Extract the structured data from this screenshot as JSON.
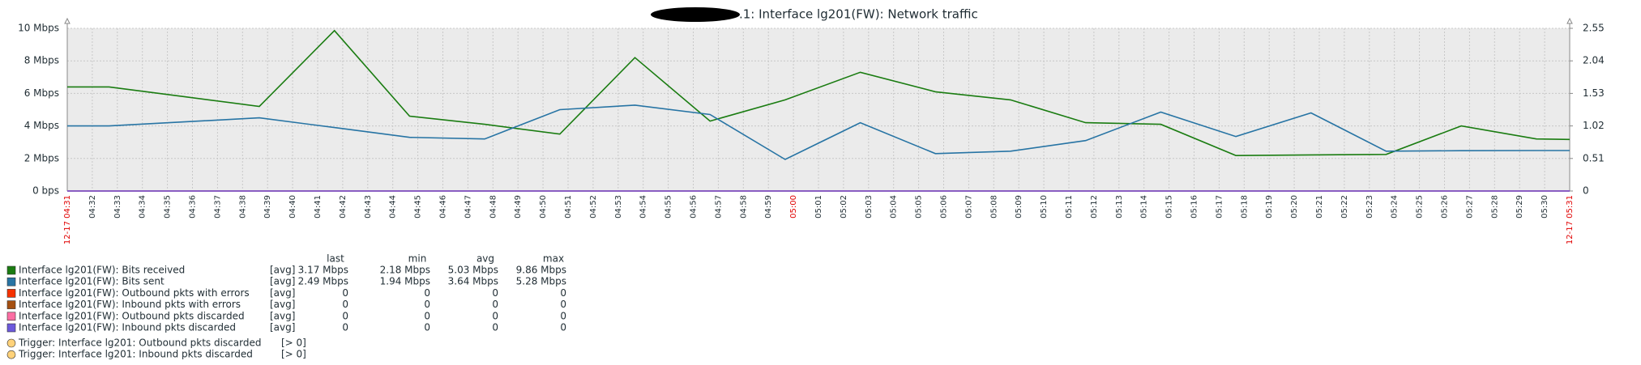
{
  "chart_data": {
    "type": "line",
    "title": ".1: Interface lg201(FW): Network traffic",
    "xlim": [
      0,
      60
    ],
    "xticks": [
      {
        "value": 0,
        "label": "12-17 04:31"
      },
      {
        "value": 1,
        "label": "04:32"
      },
      {
        "value": 2,
        "label": "04:33"
      },
      {
        "value": 3,
        "label": "04:34"
      },
      {
        "value": 4,
        "label": "04:35"
      },
      {
        "value": 5,
        "label": "04:36"
      },
      {
        "value": 6,
        "label": "04:37"
      },
      {
        "value": 7,
        "label": "04:38"
      },
      {
        "value": 8,
        "label": "04:39"
      },
      {
        "value": 9,
        "label": "04:40"
      },
      {
        "value": 10,
        "label": "04:41"
      },
      {
        "value": 11,
        "label": "04:42"
      },
      {
        "value": 12,
        "label": "04:43"
      },
      {
        "value": 13,
        "label": "04:44"
      },
      {
        "value": 14,
        "label": "04:45"
      },
      {
        "value": 15,
        "label": "04:46"
      },
      {
        "value": 16,
        "label": "04:47"
      },
      {
        "value": 17,
        "label": "04:48"
      },
      {
        "value": 18,
        "label": "04:49"
      },
      {
        "value": 19,
        "label": "04:50"
      },
      {
        "value": 20,
        "label": "04:51"
      },
      {
        "value": 21,
        "label": "04:52"
      },
      {
        "value": 22,
        "label": "04:53"
      },
      {
        "value": 23,
        "label": "04:54"
      },
      {
        "value": 24,
        "label": "04:55"
      },
      {
        "value": 25,
        "label": "04:56"
      },
      {
        "value": 26,
        "label": "04:57"
      },
      {
        "value": 27,
        "label": "04:58"
      },
      {
        "value": 28,
        "label": "04:59"
      },
      {
        "value": 29,
        "label": "05:00"
      },
      {
        "value": 30,
        "label": "05:01"
      },
      {
        "value": 31,
        "label": "05:02"
      },
      {
        "value": 32,
        "label": "05:03"
      },
      {
        "value": 33,
        "label": "05:04"
      },
      {
        "value": 34,
        "label": "05:05"
      },
      {
        "value": 35,
        "label": "05:06"
      },
      {
        "value": 36,
        "label": "05:07"
      },
      {
        "value": 37,
        "label": "05:08"
      },
      {
        "value": 38,
        "label": "05:09"
      },
      {
        "value": 39,
        "label": "05:10"
      },
      {
        "value": 40,
        "label": "05:11"
      },
      {
        "value": 41,
        "label": "05:12"
      },
      {
        "value": 42,
        "label": "05:13"
      },
      {
        "value": 43,
        "label": "05:14"
      },
      {
        "value": 44,
        "label": "05:15"
      },
      {
        "value": 45,
        "label": "05:16"
      },
      {
        "value": 46,
        "label": "05:17"
      },
      {
        "value": 47,
        "label": "05:18"
      },
      {
        "value": 48,
        "label": "05:19"
      },
      {
        "value": 49,
        "label": "05:20"
      },
      {
        "value": 50,
        "label": "05:21"
      },
      {
        "value": 51,
        "label": "05:22"
      },
      {
        "value": 52,
        "label": "05:23"
      },
      {
        "value": 53,
        "label": "05:24"
      },
      {
        "value": 54,
        "label": "05:25"
      },
      {
        "value": 55,
        "label": "05:26"
      },
      {
        "value": 56,
        "label": "05:27"
      },
      {
        "value": 57,
        "label": "05:28"
      },
      {
        "value": 58,
        "label": "05:29"
      },
      {
        "value": 59,
        "label": "05:30"
      },
      {
        "value": 60,
        "label": "12-17 05:31"
      }
    ],
    "highlight_xticks": [
      0,
      29,
      60
    ],
    "highlight_color": "#e00000",
    "ylim": [
      0,
      10
    ],
    "yticks": [
      {
        "value": 0,
        "label": "0 bps"
      },
      {
        "value": 2,
        "label": "2 Mbps"
      },
      {
        "value": 4,
        "label": "4 Mbps"
      },
      {
        "value": 6,
        "label": "6 Mbps"
      },
      {
        "value": 8,
        "label": "8 Mbps"
      },
      {
        "value": 10,
        "label": "10 Mbps"
      }
    ],
    "y2lim": [
      0,
      2.55
    ],
    "y2ticks": [
      0,
      0.51,
      1.02,
      1.53,
      2.04,
      2.55
    ],
    "grid": true,
    "x": [
      0,
      1.67,
      4.67,
      7.67,
      10.67,
      13.67,
      16.67,
      19.67,
      22.67,
      25.67,
      28.67,
      31.67,
      34.67,
      37.67,
      40.67,
      43.67,
      46.67,
      49.67,
      52.67,
      55.67,
      58.67,
      60
    ],
    "legend_columns": [
      "last",
      "min",
      "avg",
      "max"
    ],
    "series": [
      {
        "name": "Interface lg201(FW): Bits received",
        "color": "#1a7c11",
        "func": "[avg]",
        "stats": [
          "3.17 Mbps",
          "2.18 Mbps",
          "5.03 Mbps",
          "9.86 Mbps"
        ],
        "values": [
          6.4,
          6.4,
          5.8,
          5.2,
          9.86,
          4.6,
          4.1,
          3.5,
          8.2,
          4.3,
          5.6,
          7.3,
          6.1,
          5.6,
          4.2,
          4.1,
          2.18,
          2.22,
          2.25,
          4.0,
          3.2,
          3.17
        ]
      },
      {
        "name": "Interface lg201(FW): Bits sent",
        "color": "#2774a4",
        "func": "[avg]",
        "stats": [
          "2.49 Mbps",
          "1.94 Mbps",
          "3.64 Mbps",
          "5.28 Mbps"
        ],
        "values": [
          4.0,
          4.0,
          4.25,
          4.5,
          3.9,
          3.3,
          3.2,
          5.0,
          5.28,
          4.7,
          1.94,
          4.2,
          2.3,
          2.45,
          3.1,
          4.85,
          3.35,
          4.8,
          2.45,
          2.48,
          2.49,
          2.49
        ]
      },
      {
        "name": "Interface lg201(FW): Outbound pkts with errors",
        "color": "#f63100",
        "func": "[avg]",
        "stats": [
          "0",
          "0",
          "0",
          "0"
        ],
        "axis": "y2",
        "values": [
          0,
          0,
          0,
          0,
          0,
          0,
          0,
          0,
          0,
          0,
          0,
          0,
          0,
          0,
          0,
          0,
          0,
          0,
          0,
          0,
          0,
          0
        ]
      },
      {
        "name": "Interface lg201(FW): Inbound pkts with errors",
        "color": "#a54f10",
        "func": "[avg]",
        "stats": [
          "0",
          "0",
          "0",
          "0"
        ],
        "axis": "y2",
        "values": [
          0,
          0,
          0,
          0,
          0,
          0,
          0,
          0,
          0,
          0,
          0,
          0,
          0,
          0,
          0,
          0,
          0,
          0,
          0,
          0,
          0,
          0
        ]
      },
      {
        "name": "Interface lg201(FW): Outbound pkts discarded",
        "color": "#fc6ea3",
        "func": "[avg]",
        "stats": [
          "0",
          "0",
          "0",
          "0"
        ],
        "axis": "y2",
        "values": [
          0,
          0,
          0,
          0,
          0,
          0,
          0,
          0,
          0,
          0,
          0,
          0,
          0,
          0,
          0,
          0,
          0,
          0,
          0,
          0,
          0,
          0
        ]
      },
      {
        "name": "Interface lg201(FW): Inbound pkts discarded",
        "color": "#6c59dc",
        "func": "[avg]",
        "stats": [
          "0",
          "0",
          "0",
          "0"
        ],
        "axis": "y2",
        "values": [
          0,
          0,
          0,
          0,
          0,
          0,
          0,
          0,
          0,
          0,
          0,
          0,
          0,
          0,
          0,
          0,
          0,
          0,
          0,
          0,
          0,
          0
        ]
      }
    ],
    "triggers": [
      {
        "name": "Trigger: Interface lg201: Outbound pkts discarded",
        "condition": "[> 0]",
        "color": "#ffd27a"
      },
      {
        "name": "Trigger: Interface lg201: Inbound pkts discarded",
        "condition": "[> 0]",
        "color": "#ffd27a"
      }
    ]
  }
}
